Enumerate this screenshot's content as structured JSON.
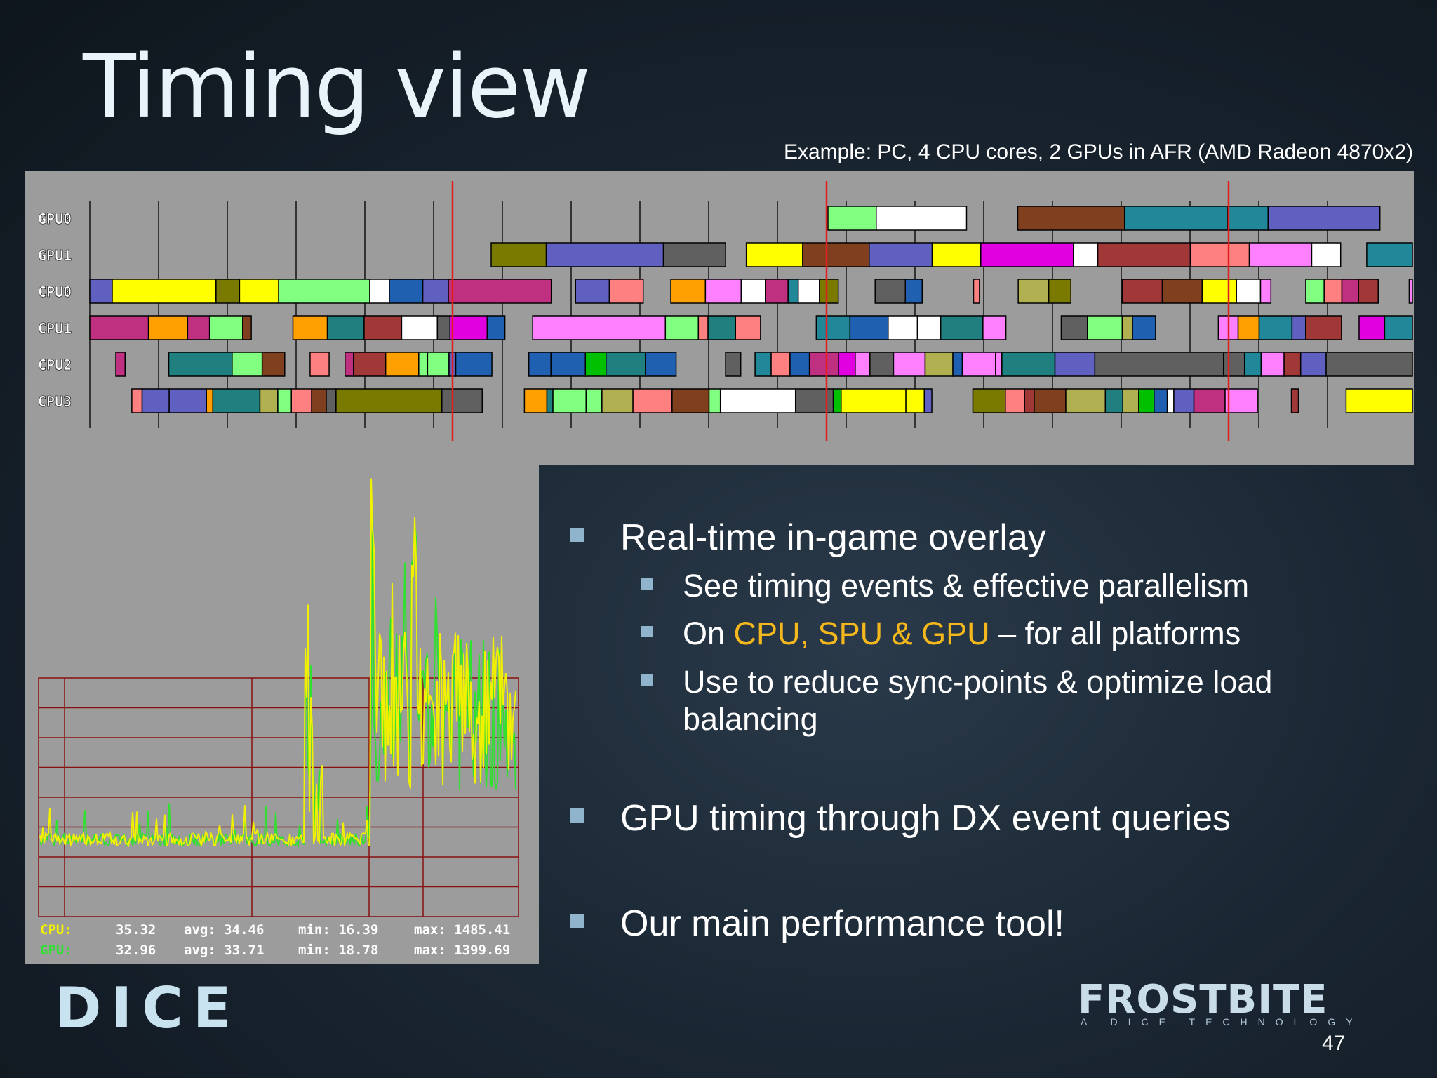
{
  "title": "Timing view",
  "subtitle": "Example: PC, 4 CPU cores, 2 GPUs in AFR (AMD Radeon 4870x2)",
  "timeline": {
    "rows": [
      "GPU0",
      "GPU1",
      "CPU0",
      "CPU1",
      "CPU2",
      "CPU3"
    ]
  },
  "stats": [
    {
      "label": "CPU:",
      "current": "35.32",
      "avg": "avg: 34.46",
      "min": "min: 16.39",
      "max": "max: 1485.41"
    },
    {
      "label": "GPU:",
      "current": "32.96",
      "avg": "avg: 33.71",
      "min": "min: 18.78",
      "max": "max: 1399.69"
    }
  ],
  "bullets": [
    {
      "text": "Real-time in-game overlay",
      "sub": [
        {
          "parts": [
            "See timing events & effective parallelism"
          ]
        },
        {
          "parts": [
            "On ",
            "CPU, SPU & GPU",
            " – for all platforms"
          ]
        },
        {
          "parts": [
            "Use to reduce sync-points & optimize load balancing"
          ]
        }
      ]
    },
    {
      "text": "GPU timing through DX event queries",
      "sub": []
    },
    {
      "text": "Our main performance tool!",
      "sub": []
    }
  ],
  "logos": {
    "dice": "DICE",
    "frostbite": "FROSTBITE",
    "tagline": "A DICE TECHNOLOGY"
  },
  "page_number": "47"
}
